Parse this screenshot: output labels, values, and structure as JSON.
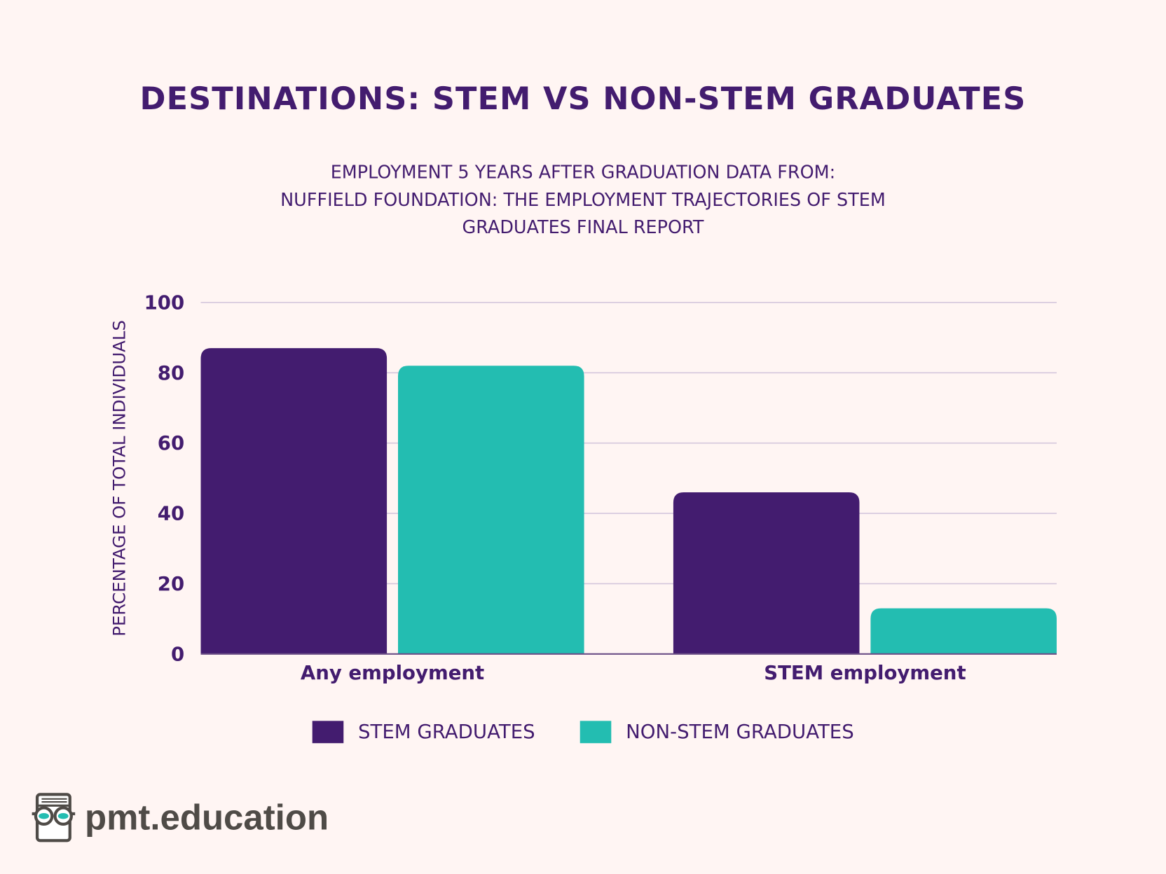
{
  "chart_data": {
    "type": "bar",
    "title": "DESTINATIONS: STEM VS NON-STEM GRADUATES",
    "subtitle": [
      "EMPLOYMENT 5 YEARS AFTER GRADUATION DATA FROM:",
      "NUFFIELD FOUNDATION: THE EMPLOYMENT TRAJECTORIES OF STEM",
      "GRADUATES FINAL REPORT"
    ],
    "ylabel": "PERCENTAGE OF TOTAL INDIVIDUALS",
    "xlabel": "",
    "categories": [
      "Any employment",
      "STEM employment"
    ],
    "series": [
      {
        "name": "STEM GRADUATES",
        "values": [
          87,
          46
        ],
        "color": "#431c6f"
      },
      {
        "name": "NON-STEM GRADUATES",
        "values": [
          82,
          13
        ],
        "color": "#23bdb1"
      }
    ],
    "ylim": [
      0,
      100
    ],
    "yticks": [
      "0",
      "20",
      "40",
      "60",
      "80",
      "100"
    ],
    "grid": true,
    "legend_position": "bottom"
  },
  "branding": {
    "logo_text": "pmt.education",
    "logo_icon": "book-with-glasses-icon"
  }
}
